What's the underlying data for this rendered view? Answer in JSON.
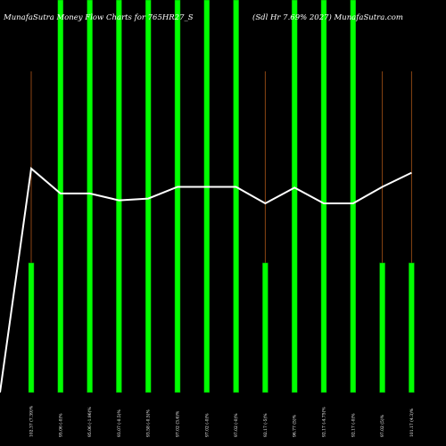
{
  "header": {
    "left_title": "MunafaSutra Money Flow  Charts for 765HR27_S",
    "right_title": "(Sdl Hr 7.69% 2027) MunafaSutra.com"
  },
  "colors": {
    "background": "#000000",
    "bar": "#00ff00",
    "bar_edge": "#008800",
    "wick": "#8b4513",
    "line": "#ffffff"
  },
  "chart_data": {
    "type": "bar",
    "title": "MunafaSutra Money Flow  Charts for 765HR27_S (Sdl Hr 7.69% 2027) MunafaSutra.com",
    "categories": [
      "102.37 (7.39)%",
      "95.06 (-0)%",
      "95.06 (-1.96)%",
      "93.07 (-0.5)%",
      "93.58 (-0.5)%",
      "97.02 (3.6)%",
      "97.02 (-0)%",
      "97.02 (-0)%",
      "92.17 (-5)%",
      "96.77 (5)%",
      "92.17 (-4.75)%",
      "92.17 (-0)%",
      "97.02 (5)%",
      "101.17 (4.3)%"
    ],
    "series": [
      {
        "values": [
          0.33,
          1,
          1,
          1,
          1,
          1,
          1,
          1,
          0.33,
          1,
          1,
          1,
          0.33,
          0.33
        ]
      }
    ],
    "price_line": [
      0,
      102.37,
      95.06,
      95.06,
      93.07,
      93.58,
      97.02,
      97.02,
      97.02,
      92.17,
      96.77,
      92.17,
      92.17,
      97.02,
      101.17
    ],
    "ylim": [
      0,
      1
    ],
    "grid": false,
    "legend": "none"
  }
}
